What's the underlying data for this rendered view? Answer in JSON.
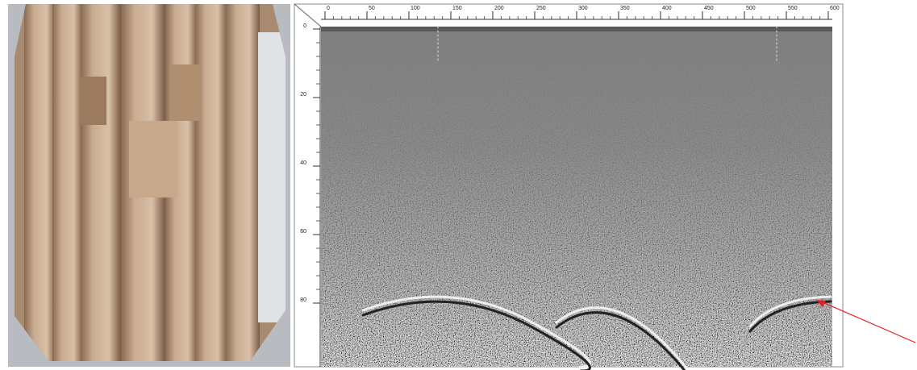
{
  "radargram": {
    "x_ticks": [
      0,
      50,
      100,
      150,
      200,
      250,
      300,
      350,
      400,
      450,
      500,
      550,
      600
    ],
    "y_ticks": [
      0,
      20,
      40,
      60,
      80
    ]
  }
}
